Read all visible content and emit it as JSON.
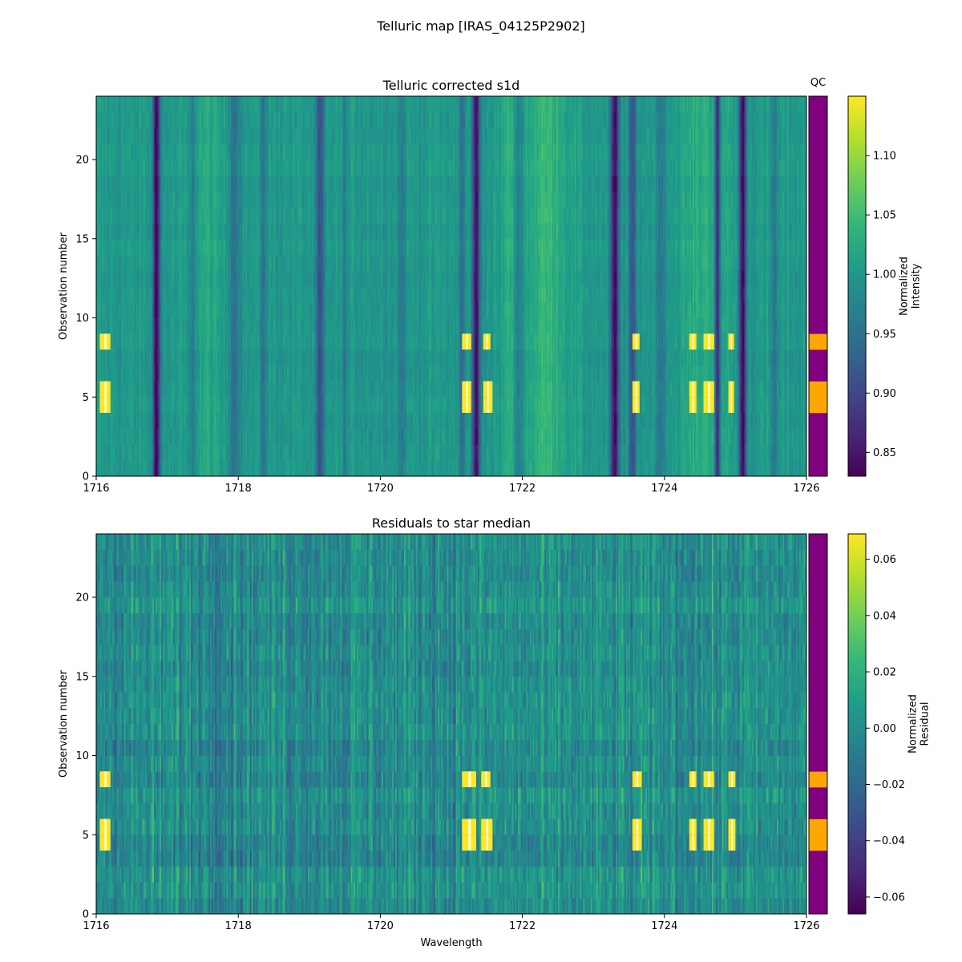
{
  "figure": {
    "title": "Telluric map [IRAS_04125P2902]"
  },
  "chart_data": [
    {
      "type": "heatmap",
      "title": "Telluric corrected s1d",
      "xlabel": "",
      "ylabel": "Observation number",
      "xlim": [
        1716,
        1726
      ],
      "ylim": [
        0,
        24
      ],
      "xticks": [
        1716,
        1718,
        1720,
        1722,
        1724,
        1726
      ],
      "yticks": [
        0,
        5,
        10,
        15,
        20
      ],
      "colormap": "viridis",
      "colorbar": {
        "label_lines": [
          "Normalized",
          "Intensity"
        ],
        "range": [
          0.83,
          1.15
        ],
        "ticks": [
          0.85,
          0.9,
          0.95,
          1.0,
          1.05,
          1.1
        ],
        "tick_labels": [
          "0.85",
          "0.90",
          "0.95",
          "1.00",
          "1.05",
          "1.10"
        ]
      },
      "baseline": 1.0,
      "absorption_lines": [
        {
          "center": 1716.85,
          "width": 0.05,
          "depth": 0.17
        },
        {
          "center": 1717.35,
          "width": 0.05,
          "depth": 0.04
        },
        {
          "center": 1717.95,
          "width": 0.06,
          "depth": 0.05
        },
        {
          "center": 1718.35,
          "width": 0.05,
          "depth": 0.04
        },
        {
          "center": 1719.15,
          "width": 0.06,
          "depth": 0.1
        },
        {
          "center": 1719.5,
          "width": 0.05,
          "depth": 0.03
        },
        {
          "center": 1720.3,
          "width": 0.05,
          "depth": 0.04
        },
        {
          "center": 1721.35,
          "width": 0.05,
          "depth": 0.17
        },
        {
          "center": 1721.15,
          "width": 0.04,
          "depth": 0.06
        },
        {
          "center": 1721.95,
          "width": 0.05,
          "depth": 0.04
        },
        {
          "center": 1723.3,
          "width": 0.06,
          "depth": 0.17
        },
        {
          "center": 1723.55,
          "width": 0.05,
          "depth": 0.1
        },
        {
          "center": 1723.95,
          "width": 0.05,
          "depth": 0.05
        },
        {
          "center": 1724.75,
          "width": 0.04,
          "depth": 0.16
        },
        {
          "center": 1725.1,
          "width": 0.05,
          "depth": 0.17
        },
        {
          "center": 1725.55,
          "width": 0.05,
          "depth": 0.04
        }
      ],
      "emission_features": [
        {
          "center": 1717.55,
          "width": 0.2,
          "height": 0.02
        },
        {
          "center": 1721.8,
          "width": 0.08,
          "height": 0.03
        },
        {
          "center": 1722.35,
          "width": 0.3,
          "height": 0.04
        },
        {
          "center": 1724.6,
          "width": 0.35,
          "height": 0.03
        }
      ],
      "noise_amplitude": 0.02,
      "saturated_rows": [
        {
          "rows": [
            4,
            5
          ],
          "spans": [
            [
              1716.05,
              1716.2
            ],
            [
              1721.15,
              1721.28
            ],
            [
              1721.45,
              1721.58
            ],
            [
              1723.55,
              1723.65
            ],
            [
              1724.35,
              1724.45
            ],
            [
              1724.55,
              1724.7
            ],
            [
              1724.9,
              1724.98
            ]
          ]
        },
        {
          "rows": [
            8
          ],
          "spans": [
            [
              1716.05,
              1716.2
            ],
            [
              1721.15,
              1721.28
            ],
            [
              1721.45,
              1721.55
            ],
            [
              1723.55,
              1723.65
            ],
            [
              1724.35,
              1724.45
            ],
            [
              1724.55,
              1724.7
            ],
            [
              1724.9,
              1724.98
            ]
          ]
        }
      ]
    },
    {
      "type": "heatmap",
      "title": "Residuals to star median",
      "xlabel": "Wavelength",
      "ylabel": "Observation number",
      "xlim": [
        1716,
        1726
      ],
      "ylim": [
        0,
        24
      ],
      "xticks": [
        1716,
        1718,
        1720,
        1722,
        1724,
        1726
      ],
      "yticks": [
        0,
        5,
        10,
        15,
        20
      ],
      "colormap": "viridis",
      "colorbar": {
        "label_lines": [
          "Normalized",
          "Residual"
        ],
        "range": [
          -0.066,
          0.069
        ],
        "ticks": [
          -0.06,
          -0.04,
          -0.02,
          0.0,
          0.02,
          0.04,
          0.06
        ],
        "tick_labels": [
          "−0.06",
          "−0.04",
          "−0.02",
          "0.00",
          "0.02",
          "0.04",
          "0.06"
        ]
      },
      "baseline": 0.0,
      "noise_amplitude": 0.022,
      "saturated_rows": [
        {
          "rows": [
            4,
            5
          ],
          "spans": [
            [
              1716.05,
              1716.2
            ],
            [
              1721.15,
              1721.35
            ],
            [
              1721.42,
              1721.58
            ],
            [
              1723.55,
              1723.68
            ],
            [
              1724.35,
              1724.45
            ],
            [
              1724.55,
              1724.7
            ],
            [
              1724.9,
              1725.0
            ]
          ]
        },
        {
          "rows": [
            8
          ],
          "spans": [
            [
              1716.05,
              1716.2
            ],
            [
              1721.15,
              1721.35
            ],
            [
              1721.42,
              1721.55
            ],
            [
              1723.55,
              1723.68
            ],
            [
              1724.35,
              1724.45
            ],
            [
              1724.55,
              1724.7
            ],
            [
              1724.9,
              1725.0
            ]
          ]
        }
      ]
    }
  ],
  "qc": {
    "label": "QC",
    "ok_color": "#800080",
    "fail_color": "#ffa500",
    "fail_rows": [
      4,
      5,
      8
    ]
  }
}
